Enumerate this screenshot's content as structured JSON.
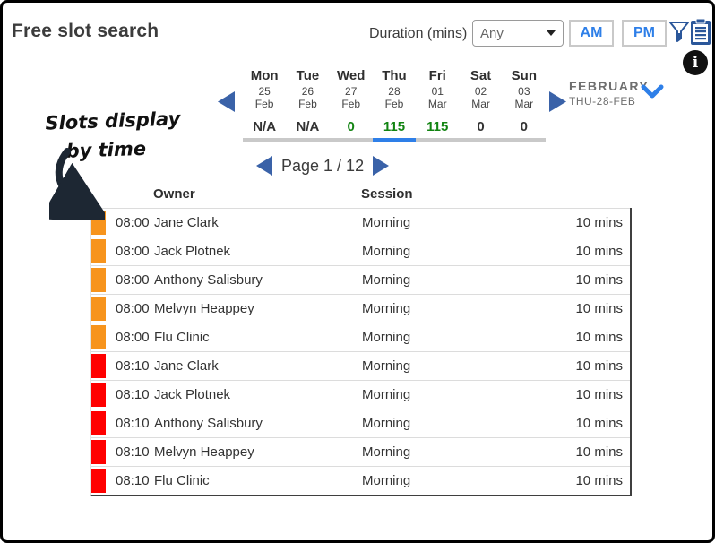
{
  "header": {
    "title": "Free slot search",
    "duration_label": "Duration (mins)",
    "duration_value": "Any",
    "am_label": "AM",
    "pm_label": "PM"
  },
  "icons": {
    "filter": "funnel-icon",
    "clipboard": "clipboard-icon",
    "info": "info-icon",
    "info_glyph": "i"
  },
  "annotation": {
    "line1": "Slots display",
    "line2": "by time"
  },
  "week_strip": {
    "month_label": "FEBRUARY",
    "selected_date_label": "THU-28-FEB",
    "days": [
      {
        "name": "Mon",
        "day": "25",
        "month": "Feb",
        "count": "N/A",
        "count_green": false,
        "selected": false
      },
      {
        "name": "Tue",
        "day": "26",
        "month": "Feb",
        "count": "N/A",
        "count_green": false,
        "selected": false
      },
      {
        "name": "Wed",
        "day": "27",
        "month": "Feb",
        "count": "0",
        "count_green": true,
        "selected": false
      },
      {
        "name": "Thu",
        "day": "28",
        "month": "Feb",
        "count": "115",
        "count_green": true,
        "selected": true
      },
      {
        "name": "Fri",
        "day": "01",
        "month": "Mar",
        "count": "115",
        "count_green": true,
        "selected": false
      },
      {
        "name": "Sat",
        "day": "02",
        "month": "Mar",
        "count": "0",
        "count_green": false,
        "selected": false
      },
      {
        "name": "Sun",
        "day": "03",
        "month": "Mar",
        "count": "0",
        "count_green": false,
        "selected": false
      }
    ]
  },
  "pagination": {
    "label": "Page 1 / 12"
  },
  "table": {
    "columns": {
      "owner": "Owner",
      "session": "Session"
    },
    "rows": [
      {
        "time": "08:00",
        "owner": "Jane Clark",
        "session": "Morning",
        "duration": "10 mins",
        "bar": "orange"
      },
      {
        "time": "08:00",
        "owner": "Jack Plotnek",
        "session": "Morning",
        "duration": "10 mins",
        "bar": "orange"
      },
      {
        "time": "08:00",
        "owner": "Anthony Salisbury",
        "session": "Morning",
        "duration": "10 mins",
        "bar": "orange"
      },
      {
        "time": "08:00",
        "owner": "Melvyn Heappey",
        "session": "Morning",
        "duration": "10 mins",
        "bar": "orange"
      },
      {
        "time": "08:00",
        "owner": "Flu Clinic",
        "session": "Morning",
        "duration": "10 mins",
        "bar": "orange"
      },
      {
        "time": "08:10",
        "owner": "Jane Clark",
        "session": "Morning",
        "duration": "10 mins",
        "bar": "red"
      },
      {
        "time": "08:10",
        "owner": "Jack Plotnek",
        "session": "Morning",
        "duration": "10 mins",
        "bar": "red"
      },
      {
        "time": "08:10",
        "owner": "Anthony Salisbury",
        "session": "Morning",
        "duration": "10 mins",
        "bar": "red"
      },
      {
        "time": "08:10",
        "owner": "Melvyn Heappey",
        "session": "Morning",
        "duration": "10 mins",
        "bar": "red"
      },
      {
        "time": "08:10",
        "owner": "Flu Clinic",
        "session": "Morning",
        "duration": "10 mins",
        "bar": "red"
      }
    ]
  },
  "colors": {
    "orange": "#F7941D",
    "red": "#FF0000",
    "green": "#128412",
    "accent_blue": "#2E7FE8",
    "nav_blue": "#3A62A8",
    "icon_blue": "#2B579A",
    "strip_gray": "#C9C9C9"
  }
}
